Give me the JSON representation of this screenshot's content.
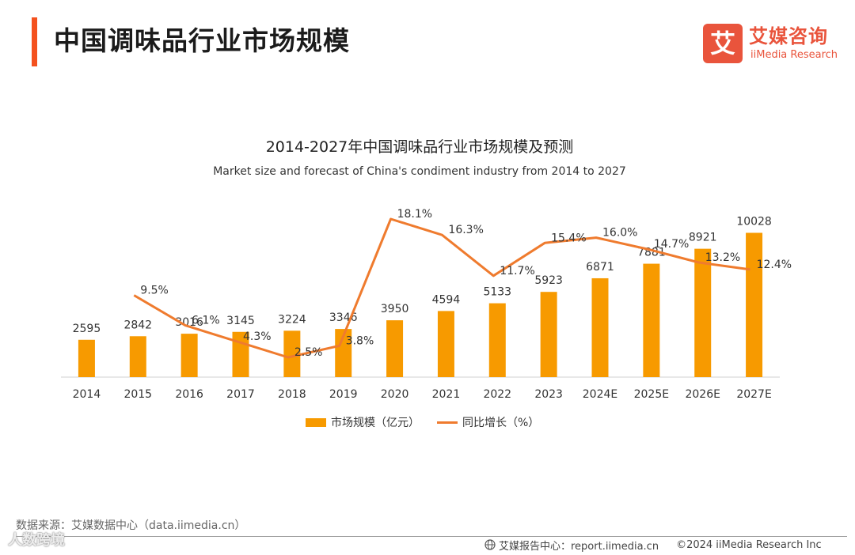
{
  "page": {
    "title": "中国调味品行业市场规模"
  },
  "logo": {
    "mark": "艾",
    "name_cn": "艾媒咨询",
    "name_en": "iiMedia Research"
  },
  "chart_data": {
    "type": "bar",
    "title": "2014-2027年中国调味品行业市场规模及预测",
    "subtitle": "Market size and forecast of China's condiment industry from 2014 to 2027",
    "categories": [
      "2014",
      "2015",
      "2016",
      "2017",
      "2018",
      "2019",
      "2020",
      "2021",
      "2022",
      "2023",
      "2024E",
      "2025E",
      "2026E",
      "2027E"
    ],
    "series": [
      {
        "name": "市场规模（亿元）",
        "type": "bar",
        "color": "#f79a00",
        "values": [
          2595,
          2842,
          3016,
          3145,
          3224,
          3346,
          3950,
          4594,
          5133,
          5923,
          6871,
          7881,
          8921,
          10028
        ],
        "labels": [
          "2595",
          "2842",
          "3016",
          "3145",
          "3224",
          "3346",
          "3950",
          "4594",
          "5133",
          "5923",
          "6871",
          "7881",
          "8921",
          "10028"
        ]
      },
      {
        "name": "同比增长（%）",
        "type": "line",
        "color": "#ef7b2e",
        "values": [
          null,
          9.5,
          6.1,
          4.3,
          2.5,
          3.8,
          18.1,
          16.3,
          11.7,
          15.4,
          16.0,
          14.7,
          13.2,
          12.4
        ],
        "labels": [
          "",
          "9.5%",
          "6.1%",
          "4.3%",
          "2.5%",
          "3.8%",
          "18.1%",
          "16.3%",
          "11.7%",
          "15.4%",
          "16.0%",
          "14.7%",
          "13.2%",
          "12.4%"
        ]
      }
    ],
    "ylim": [
      0,
      11000
    ],
    "y2lim": [
      -4,
      20
    ],
    "grid": false,
    "legend": "bottom"
  },
  "legend": {
    "bar_label": "市场规模（亿元）",
    "line_label": "同比增长（%）"
  },
  "footer": {
    "source": "数据来源：艾媒数据中心（data.iimedia.cn）",
    "watermark": "人数跨境",
    "report_center": "艾媒报告中心：report.iimedia.cn",
    "copyright": "©2024  iiMedia Research  Inc"
  },
  "colors": {
    "accent": "#f4511e",
    "brand": "#e9543c",
    "bar": "#f79a00",
    "line": "#ef7b2e"
  }
}
